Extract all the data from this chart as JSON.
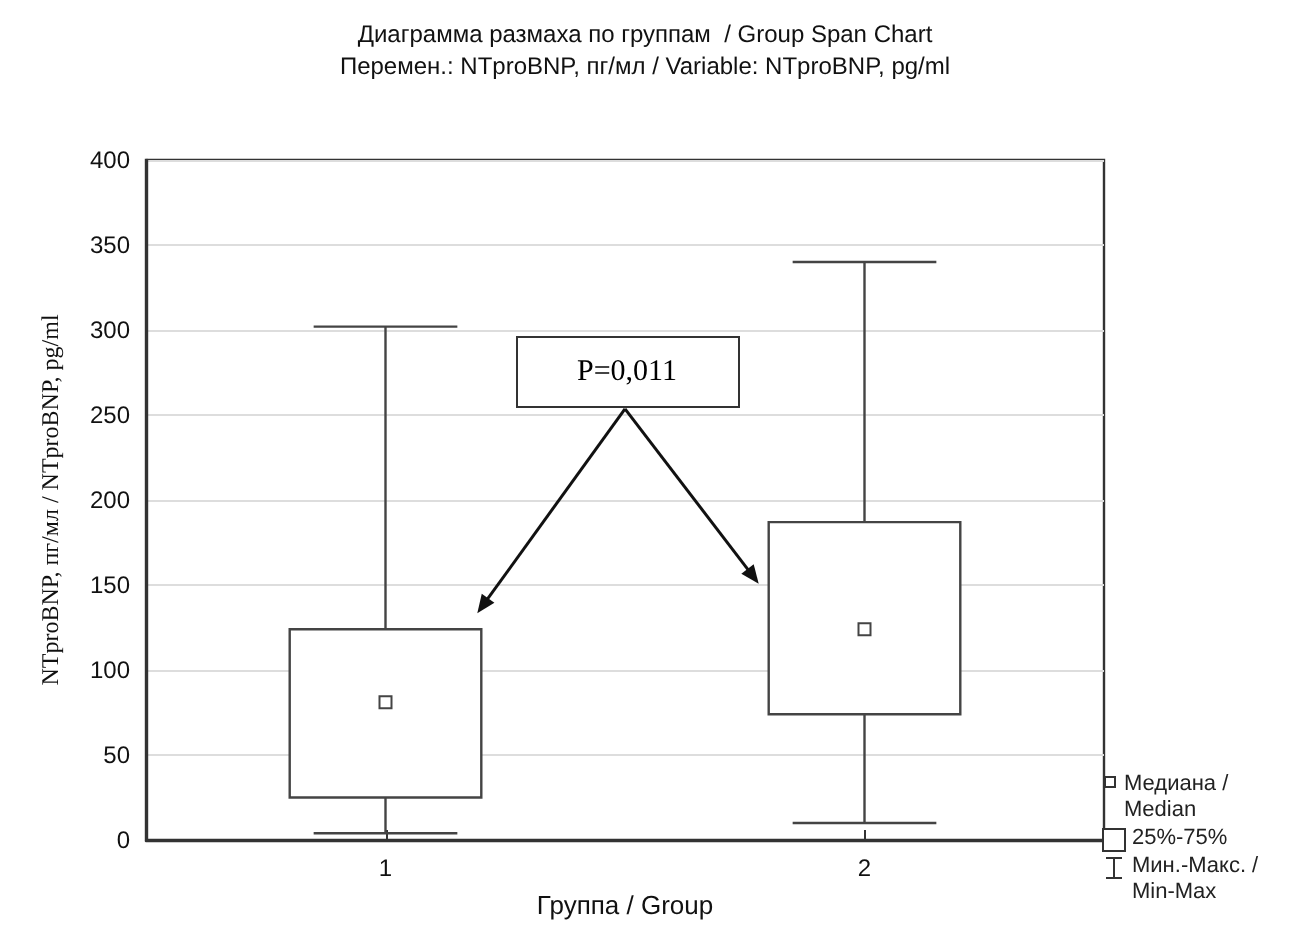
{
  "chart_data": {
    "type": "box",
    "title": "Диаграмма размаха по группам  / Group Span Chart",
    "subtitle": "Перемен.: NTproBNP, пг/мл / Variable: NTproBNP, pg/ml",
    "xlabel": "Группа / Group",
    "ylabel": "NTproBNP, пг/мл / NTproBNP, pg/ml",
    "categories": [
      "1",
      "2"
    ],
    "boxes": [
      {
        "low": 4,
        "q1": 25,
        "median": 81,
        "q3": 124,
        "high": 302
      },
      {
        "low": 10,
        "q1": 74,
        "median": 124,
        "q3": 187,
        "high": 340
      }
    ],
    "color": "#444444",
    "ylim": [
      0,
      400
    ],
    "yticks": [
      0,
      50,
      100,
      150,
      200,
      250,
      300,
      350,
      400
    ],
    "grid": "y",
    "annotations": [
      "P=0,011",
      "Медиана / Median",
      "25%-75%",
      "Мин.-Макс. / Min-Max"
    ]
  }
}
